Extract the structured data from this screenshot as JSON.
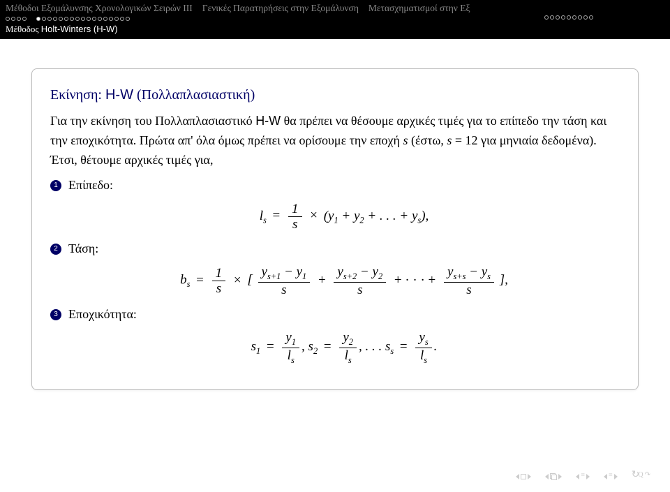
{
  "header": {
    "nav": [
      "Μέθοδοι Εξομάλυνσης Χρονολογικών Σειρών III",
      "Γενικές Παρατηρήσεις στην Εξομάλυνση",
      "Μετασχηματισμοί στην Εξ"
    ],
    "subtitle_prefix": "Μέθοδος ",
    "subtitle_hw": "Holt-Winters (H-W)"
  },
  "card": {
    "title_pre": "Εκίνηση: ",
    "title_hw": "H-W",
    "title_post": " (Πολλαπλασιαστική)",
    "para1_pre": "Για την εκίνηση του Πολλαπλασιαστικό ",
    "para1_hw": "H-W",
    "para1_mid": " θα πρέπει να θέσουμε αρχικές τιμές για το επίπεδο την τάση και την εποχικότητα. Πρώτα απ' όλα όμως πρέπει να ορίσουμε την εποχή ",
    "s": "s",
    "para1_open": " (έστω, ",
    "eq_s12": "s = 12",
    "para1_close": " για μηνιαία δεδομένα). Έτσι, θέτουμε αρχικές τιμές για,",
    "item1_label": "Επίπεδο:",
    "item2_label": "Τάση:",
    "item3_label": "Εποχικότητα:"
  },
  "bullets": {
    "one": "1",
    "two": "2",
    "three": "3"
  },
  "colors": {
    "accent": "#000066",
    "nav_bg": "#000000",
    "nav_text": "#888888"
  }
}
